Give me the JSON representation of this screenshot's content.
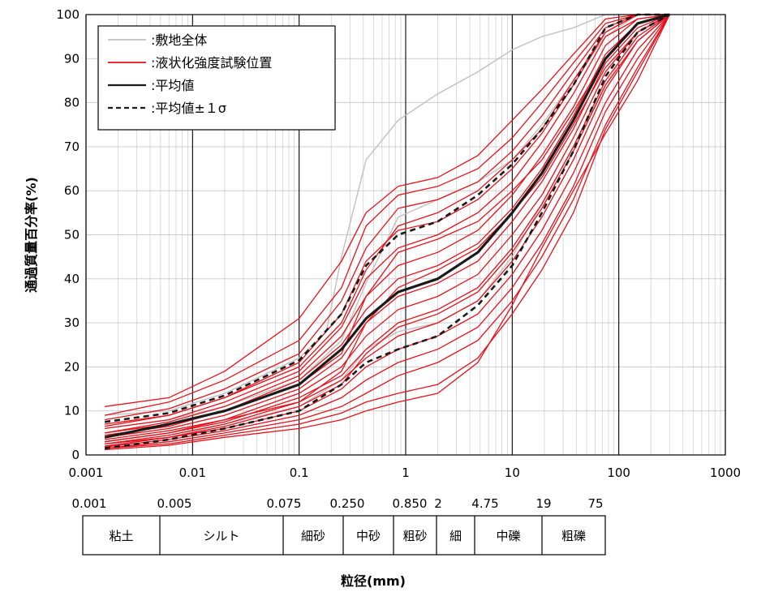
{
  "chart_data": {
    "type": "line",
    "xscale": "log",
    "xlim": [
      0.001,
      1000
    ],
    "ylim": [
      0,
      100
    ],
    "xticks": [
      "0.001",
      "0.01",
      "0.1",
      "1",
      "10",
      "100",
      "1000"
    ],
    "yticks": [
      "0",
      "10",
      "20",
      "30",
      "40",
      "50",
      "60",
      "70",
      "80",
      "90",
      "100"
    ],
    "xlabel": "粒径(mm)",
    "ylabel": "通過質量百分率(%)",
    "grid": true,
    "legend": {
      "placement": "top-left",
      "entries": [
        {
          "label": ":敷地全体",
          "color": "#c0c0c0",
          "style": "solid"
        },
        {
          "label": ":液状化強度試験位置",
          "color": "#e8101a",
          "style": "solid"
        },
        {
          "label": ":平均値",
          "color": "#1a1a1a",
          "style": "solid"
        },
        {
          "label": ":平均値±１σ",
          "color": "#1a1a1a",
          "style": "dashed"
        }
      ]
    },
    "series": [
      {
        "name": ":平均値",
        "color": "#1a1a1a",
        "style": "solid",
        "x": [
          0.0015,
          0.006,
          0.02,
          0.1,
          0.25,
          0.425,
          0.85,
          2,
          4.75,
          10,
          19,
          37.5,
          75,
          150,
          300
        ],
        "y": [
          4,
          7,
          10,
          16,
          24,
          31,
          37,
          40,
          46,
          55,
          64,
          76,
          90,
          98,
          100
        ]
      },
      {
        "name": ":平均値±１σ (+)",
        "color": "#1a1a1a",
        "style": "dashed",
        "x": [
          0.0015,
          0.006,
          0.02,
          0.1,
          0.25,
          0.425,
          0.85,
          2,
          4.75,
          10,
          19,
          37.5,
          75,
          150,
          300
        ],
        "y": [
          7.5,
          9.5,
          13.5,
          21.5,
          32,
          43,
          50,
          53,
          59,
          66,
          74,
          84,
          97,
          100,
          100
        ]
      },
      {
        "name": ":平均値±１σ (-)",
        "color": "#1a1a1a",
        "style": "dashed",
        "x": [
          0.0015,
          0.006,
          0.02,
          0.1,
          0.25,
          0.425,
          0.85,
          2,
          4.75,
          10,
          19,
          37.5,
          75,
          150,
          300
        ],
        "y": [
          1.5,
          3.5,
          6,
          10,
          16,
          21,
          24,
          27,
          34,
          43,
          55,
          69,
          86,
          96,
          100
        ]
      },
      {
        "name": ":敷地全体",
        "color": "#c0c0c0",
        "style": "solid",
        "x": [
          0.0015,
          0.006,
          0.02,
          0.1,
          0.18,
          0.25,
          0.425,
          0.85,
          2,
          4.75,
          10,
          19,
          37.5,
          75
        ],
        "y": [
          9,
          10,
          14,
          22,
          28,
          45,
          67,
          76,
          82,
          87,
          92,
          95,
          97,
          100
        ]
      },
      {
        "name": ":敷地全体",
        "color": "#c0c0c0",
        "style": "solid",
        "x": [
          0.0015,
          0.006,
          0.02,
          0.1,
          0.25,
          0.425,
          0.85,
          2,
          4.75,
          10,
          19,
          37.5,
          75,
          150
        ],
        "y": [
          6,
          8,
          11,
          17,
          26,
          39,
          54,
          58,
          62,
          67,
          75,
          85,
          95,
          100
        ]
      },
      {
        "name": ":敷地全体",
        "color": "#c0c0c0",
        "style": "solid",
        "x": [
          0.0015,
          0.006,
          0.02,
          0.1,
          0.25,
          0.425,
          0.85,
          2,
          4.75,
          10,
          19,
          37.5,
          75,
          150,
          300
        ],
        "y": [
          2,
          4,
          7,
          11,
          17,
          24,
          28,
          30,
          35,
          45,
          57,
          70,
          84,
          96,
          100
        ]
      }
    ],
    "red_curves": [
      {
        "x": [
          0.0015,
          0.006,
          0.02,
          0.1,
          0.25,
          0.425,
          0.85,
          2,
          4.75,
          10,
          19,
          37.5,
          75,
          150,
          300
        ],
        "y": [
          11,
          13,
          19,
          31,
          44,
          55,
          61,
          63,
          68,
          76,
          83,
          91,
          99,
          100,
          100
        ]
      },
      {
        "x": [
          0.0015,
          0.006,
          0.02,
          0.1,
          0.25,
          0.425,
          0.85,
          2,
          4.75,
          10,
          19,
          37.5,
          75,
          150,
          300
        ],
        "y": [
          9,
          12,
          17,
          26,
          38,
          52,
          59,
          61,
          65,
          72,
          80,
          89,
          98,
          100,
          100
        ]
      },
      {
        "x": [
          0.0015,
          0.006,
          0.02,
          0.1,
          0.25,
          0.425,
          0.85,
          2,
          4.75,
          10,
          19,
          37.5,
          75,
          150,
          300
        ],
        "y": [
          8,
          10.5,
          15,
          23,
          35,
          47,
          56,
          58,
          62,
          69,
          77,
          87,
          97,
          100,
          100
        ]
      },
      {
        "x": [
          0.0015,
          0.006,
          0.02,
          0.1,
          0.25,
          0.425,
          0.85,
          2,
          4.75,
          10,
          19,
          37.5,
          75,
          150,
          300
        ],
        "y": [
          7,
          9,
          13,
          21,
          32,
          44,
          51,
          53,
          58,
          65,
          73,
          84,
          96,
          100,
          100
        ]
      },
      {
        "x": [
          0.0015,
          0.006,
          0.02,
          0.1,
          0.25,
          0.425,
          0.85,
          2,
          4.75,
          10,
          19,
          37.5,
          75,
          150,
          300
        ],
        "y": [
          6,
          8,
          12,
          19,
          29,
          40,
          47,
          50,
          55,
          62,
          71,
          82,
          95,
          99,
          100
        ]
      },
      {
        "x": [
          0.0015,
          0.006,
          0.02,
          0.1,
          0.25,
          0.425,
          0.85,
          2,
          4.75,
          10,
          19,
          37.5,
          75,
          150,
          300
        ],
        "y": [
          5,
          7.5,
          11,
          18,
          27,
          36,
          43,
          46,
          51,
          59,
          68,
          79,
          93,
          99,
          100
        ]
      },
      {
        "x": [
          0.0015,
          0.006,
          0.02,
          0.1,
          0.25,
          0.425,
          0.85,
          2,
          4.75,
          10,
          19,
          37.5,
          75,
          150,
          300
        ],
        "y": [
          4.5,
          6.5,
          10,
          17,
          25,
          33,
          40,
          43,
          48,
          56,
          65,
          77,
          91,
          98,
          100
        ]
      },
      {
        "x": [
          0.0015,
          0.006,
          0.02,
          0.1,
          0.25,
          0.425,
          0.85,
          2,
          4.75,
          10,
          19,
          37.5,
          75,
          150,
          300
        ],
        "y": [
          4,
          6,
          9,
          15,
          22,
          30,
          36,
          39,
          44,
          53,
          62,
          74,
          89,
          97,
          100
        ]
      },
      {
        "x": [
          0.0015,
          0.006,
          0.02,
          0.1,
          0.25,
          0.425,
          0.85,
          2,
          4.75,
          10,
          19,
          37.5,
          75,
          150,
          300
        ],
        "y": [
          3.5,
          5.5,
          8,
          14,
          20,
          27,
          33,
          36,
          41,
          50,
          59,
          72,
          87,
          96,
          100
        ]
      },
      {
        "x": [
          0.0015,
          0.006,
          0.02,
          0.1,
          0.25,
          0.425,
          0.85,
          2,
          4.75,
          10,
          19,
          37.5,
          75,
          150,
          300
        ],
        "y": [
          3,
          5,
          7.5,
          13,
          18,
          24,
          30,
          33,
          38,
          47,
          57,
          70,
          85,
          95,
          100
        ]
      },
      {
        "x": [
          0.0015,
          0.006,
          0.02,
          0.1,
          0.25,
          0.425,
          0.85,
          2,
          4.75,
          10,
          19,
          37.5,
          75,
          150,
          300
        ],
        "y": [
          2.5,
          4.5,
          7,
          12,
          17,
          22,
          27,
          30,
          35,
          44,
          54,
          67,
          83,
          94,
          100
        ]
      },
      {
        "x": [
          0.0015,
          0.006,
          0.02,
          0.1,
          0.25,
          0.425,
          0.85,
          2,
          4.75,
          10,
          19,
          37.5,
          75,
          150,
          300
        ],
        "y": [
          2,
          4,
          6,
          10,
          15,
          20,
          24,
          27,
          32,
          41,
          51,
          64,
          80,
          92,
          100
        ]
      },
      {
        "x": [
          0.0015,
          0.006,
          0.02,
          0.1,
          0.25,
          0.425,
          0.85,
          2,
          4.75,
          10,
          19,
          37.5,
          75,
          150,
          300
        ],
        "y": [
          1.8,
          3.5,
          5.5,
          9,
          13,
          17,
          21,
          24,
          29,
          38,
          48,
          61,
          78,
          90,
          100
        ]
      },
      {
        "x": [
          0.0015,
          0.006,
          0.02,
          0.1,
          0.25,
          0.425,
          0.85,
          2,
          4.75,
          10,
          19,
          37.5,
          75,
          150,
          300
        ],
        "y": [
          1.5,
          3,
          5,
          8,
          11,
          14,
          18,
          21,
          26,
          35,
          45,
          58,
          75,
          88,
          100
        ]
      },
      {
        "x": [
          0.0015,
          0.006,
          0.02,
          0.1,
          0.25,
          0.425,
          0.85,
          2,
          4.75,
          10,
          19,
          37.5,
          75,
          150,
          300
        ],
        "y": [
          1.5,
          2.5,
          4.5,
          7,
          9.5,
          12,
          14,
          16,
          22,
          32,
          42,
          55,
          74,
          87,
          100
        ]
      },
      {
        "x": [
          0.0015,
          0.006,
          0.02,
          0.1,
          0.25,
          0.425,
          0.85,
          2,
          4.75,
          10,
          19,
          37.5,
          75,
          150,
          300
        ],
        "y": [
          1.2,
          2.2,
          4,
          6,
          8,
          10,
          12,
          14,
          21,
          34,
          47,
          60,
          73,
          85,
          100
        ]
      },
      {
        "x": [
          0.0015,
          0.006,
          0.02,
          0.1,
          0.25,
          0.425,
          0.85,
          2,
          4.75,
          10,
          19,
          37.5,
          75,
          150,
          300
        ],
        "y": [
          5,
          7,
          10,
          16,
          23,
          36,
          46,
          49,
          53,
          60,
          67,
          78,
          90,
          98,
          100
        ]
      },
      {
        "x": [
          0.0015,
          0.006,
          0.02,
          0.1,
          0.25,
          0.425,
          0.85,
          2,
          4.75,
          10,
          19,
          37.5,
          75,
          150,
          300
        ],
        "y": [
          3,
          5,
          8,
          12,
          19,
          30,
          38,
          42,
          47,
          55,
          63,
          75,
          88,
          96,
          100
        ]
      },
      {
        "x": [
          0.0015,
          0.006,
          0.02,
          0.1,
          0.25,
          0.425,
          0.85,
          2,
          4.75,
          10,
          19,
          37.5,
          75,
          150,
          300
        ],
        "y": [
          6.5,
          9,
          13,
          20,
          30,
          42,
          52,
          55,
          60,
          67,
          74,
          85,
          96,
          100,
          100
        ]
      },
      {
        "x": [
          0.0015,
          0.006,
          0.02,
          0.1,
          0.25,
          0.425,
          0.85,
          2,
          4.75,
          10,
          19,
          37.5,
          75,
          150,
          300
        ],
        "y": [
          2.5,
          4,
          6.5,
          11,
          16,
          23,
          29,
          32,
          37,
          46,
          56,
          69,
          84,
          94,
          100
        ]
      }
    ]
  },
  "size_table": {
    "sizes": [
      "0.001",
      "0.005",
      "0.075",
      "0.250",
      "0.850",
      "2",
      "4.75",
      "19",
      "75"
    ],
    "classes": [
      "粘土",
      "シルト",
      "細砂",
      "中砂",
      "粗砂",
      "細",
      "中礫",
      "粗礫"
    ]
  }
}
